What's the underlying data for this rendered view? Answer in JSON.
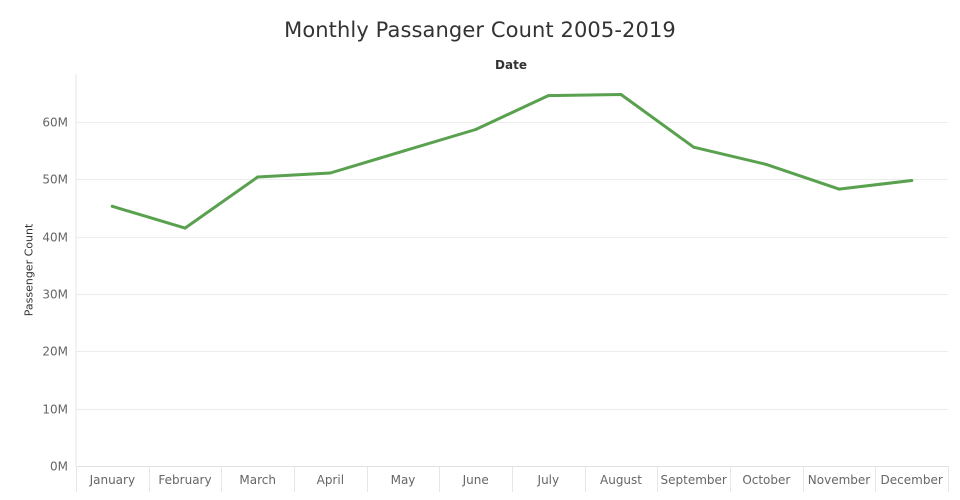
{
  "chart_data": {
    "type": "line",
    "title": "Monthly Passanger Count 2005-2019",
    "column_header": "Date",
    "xlabel": "",
    "ylabel": "Passenger Count",
    "categories": [
      "January",
      "February",
      "March",
      "April",
      "May",
      "June",
      "July",
      "August",
      "September",
      "October",
      "November",
      "December"
    ],
    "series": [
      {
        "values": [
          45300000,
          41500000,
          50400000,
          51100000,
          54900000,
          58700000,
          64600000,
          64800000,
          55600000,
          52600000,
          48300000,
          49800000
        ],
        "color": "#59a14f"
      }
    ],
    "yticks": [
      0,
      10000000,
      20000000,
      30000000,
      40000000,
      50000000,
      60000000
    ],
    "ytick_labels": [
      "0M",
      "10M",
      "20M",
      "30M",
      "40M",
      "50M",
      "60M"
    ],
    "ylim": [
      0,
      70000000
    ],
    "grid": true,
    "legend": "none"
  }
}
